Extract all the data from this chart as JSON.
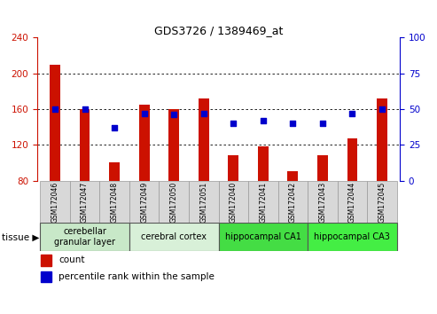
{
  "title": "GDS3726 / 1389469_at",
  "samples": [
    "GSM172046",
    "GSM172047",
    "GSM172048",
    "GSM172049",
    "GSM172050",
    "GSM172051",
    "GSM172040",
    "GSM172041",
    "GSM172042",
    "GSM172043",
    "GSM172044",
    "GSM172045"
  ],
  "counts": [
    210,
    160,
    100,
    165,
    160,
    172,
    108,
    118,
    90,
    108,
    127,
    172
  ],
  "percentiles": [
    50,
    50,
    37,
    47,
    46,
    47,
    40,
    42,
    40,
    40,
    47,
    50
  ],
  "ymin": 80,
  "ymax": 240,
  "yticks": [
    80,
    120,
    160,
    200,
    240
  ],
  "y2min": 0,
  "y2max": 100,
  "y2ticks": [
    0,
    25,
    50,
    75,
    100
  ],
  "bar_color": "#cc1100",
  "dot_color": "#0000cc",
  "tissue_groups": [
    {
      "label": "cerebellar\ngranular layer",
      "start": 0,
      "end": 3,
      "color": "#c8e8c8"
    },
    {
      "label": "cerebral cortex",
      "start": 3,
      "end": 6,
      "color": "#d8f0d8"
    },
    {
      "label": "hippocampal CA1",
      "start": 6,
      "end": 9,
      "color": "#44dd44"
    },
    {
      "label": "hippocampal CA3",
      "start": 9,
      "end": 12,
      "color": "#44ee44"
    }
  ],
  "legend_count_label": "count",
  "legend_pct_label": "percentile rank within the sample",
  "tissue_label": "tissue",
  "bar_width": 0.35,
  "title_fontsize": 9,
  "tick_fontsize": 7.5,
  "sample_fontsize": 5.5,
  "tissue_fontsize": 7,
  "legend_fontsize": 7.5
}
